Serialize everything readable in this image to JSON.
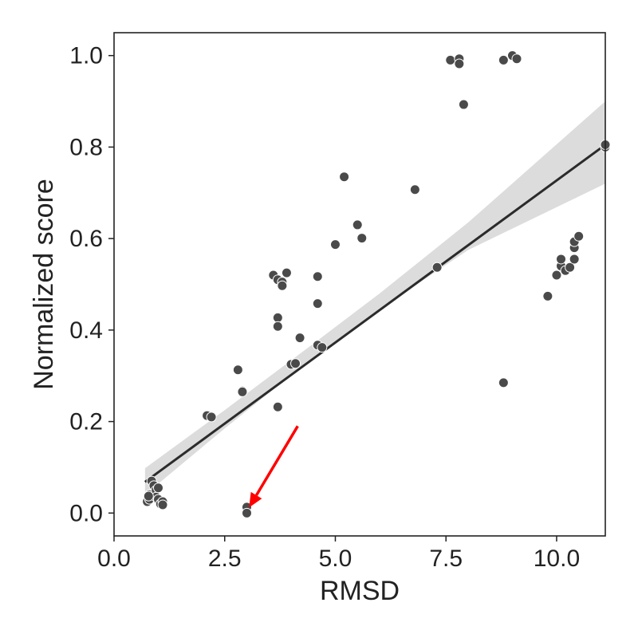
{
  "chart_data": {
    "type": "scatter",
    "title": "",
    "xlabel": "RMSD",
    "ylabel": "Normalized score",
    "xlim": [
      0.0,
      11.1
    ],
    "ylim": [
      -0.05,
      1.05
    ],
    "xticks": [
      0.0,
      2.5,
      5.0,
      7.5,
      10.0
    ],
    "xtick_labels": [
      "0.0",
      "2.5",
      "5.0",
      "7.5",
      "10.0"
    ],
    "yticks": [
      0.0,
      0.2,
      0.4,
      0.6,
      0.8,
      1.0
    ],
    "ytick_labels": [
      "0.0",
      "0.2",
      "0.4",
      "0.6",
      "0.8",
      "1.0"
    ],
    "grid": false,
    "legend": "none",
    "colors": {
      "points": "#4a4a4a",
      "point_edge": "#ffffff",
      "regression_line": "#2b2b2b",
      "confidence_band": "#dcdcdc",
      "arrow": "#ff0000",
      "axes": "#222222"
    },
    "points": [
      {
        "x": 0.75,
        "y": 0.025
      },
      {
        "x": 0.8,
        "y": 0.03
      },
      {
        "x": 0.8,
        "y": 0.04
      },
      {
        "x": 0.85,
        "y": 0.07
      },
      {
        "x": 0.9,
        "y": 0.06
      },
      {
        "x": 0.95,
        "y": 0.05
      },
      {
        "x": 0.95,
        "y": 0.035
      },
      {
        "x": 1.0,
        "y": 0.03
      },
      {
        "x": 1.0,
        "y": 0.055
      },
      {
        "x": 1.05,
        "y": 0.02
      },
      {
        "x": 1.1,
        "y": 0.025
      },
      {
        "x": 1.1,
        "y": 0.018
      },
      {
        "x": 0.78,
        "y": 0.037
      },
      {
        "x": 2.1,
        "y": 0.213
      },
      {
        "x": 2.2,
        "y": 0.21
      },
      {
        "x": 2.8,
        "y": 0.313
      },
      {
        "x": 2.9,
        "y": 0.267
      },
      {
        "x": 2.9,
        "y": 0.265
      },
      {
        "x": 3.0,
        "y": 0.013
      },
      {
        "x": 3.0,
        "y": 0.0
      },
      {
        "x": 3.6,
        "y": 0.52
      },
      {
        "x": 3.7,
        "y": 0.51
      },
      {
        "x": 3.8,
        "y": 0.505
      },
      {
        "x": 3.8,
        "y": 0.497
      },
      {
        "x": 3.9,
        "y": 0.525
      },
      {
        "x": 3.7,
        "y": 0.427
      },
      {
        "x": 3.7,
        "y": 0.408
      },
      {
        "x": 3.7,
        "y": 0.232
      },
      {
        "x": 4.0,
        "y": 0.325
      },
      {
        "x": 4.1,
        "y": 0.327
      },
      {
        "x": 4.2,
        "y": 0.383
      },
      {
        "x": 4.6,
        "y": 0.517
      },
      {
        "x": 4.6,
        "y": 0.458
      },
      {
        "x": 4.6,
        "y": 0.367
      },
      {
        "x": 4.7,
        "y": 0.362
      },
      {
        "x": 5.0,
        "y": 0.587
      },
      {
        "x": 5.2,
        "y": 0.735
      },
      {
        "x": 5.5,
        "y": 0.63
      },
      {
        "x": 5.6,
        "y": 0.601
      },
      {
        "x": 6.8,
        "y": 0.707
      },
      {
        "x": 7.3,
        "y": 0.537
      },
      {
        "x": 7.6,
        "y": 0.99
      },
      {
        "x": 7.8,
        "y": 0.993
      },
      {
        "x": 7.8,
        "y": 0.982
      },
      {
        "x": 7.9,
        "y": 0.893
      },
      {
        "x": 8.8,
        "y": 0.99
      },
      {
        "x": 8.8,
        "y": 0.285
      },
      {
        "x": 9.0,
        "y": 1.0
      },
      {
        "x": 9.1,
        "y": 0.993
      },
      {
        "x": 9.8,
        "y": 0.474
      },
      {
        "x": 10.0,
        "y": 0.52
      },
      {
        "x": 10.1,
        "y": 0.54
      },
      {
        "x": 10.1,
        "y": 0.555
      },
      {
        "x": 10.2,
        "y": 0.53
      },
      {
        "x": 10.3,
        "y": 0.537
      },
      {
        "x": 10.4,
        "y": 0.555
      },
      {
        "x": 10.4,
        "y": 0.58
      },
      {
        "x": 10.4,
        "y": 0.593
      },
      {
        "x": 10.5,
        "y": 0.605
      },
      {
        "x": 11.1,
        "y": 0.8
      },
      {
        "x": 11.1,
        "y": 0.805
      }
    ],
    "regression": {
      "x_start": 0.7,
      "y_start": 0.068,
      "x_end": 11.1,
      "y_end": 0.805
    },
    "confidence_band": [
      {
        "x": 0.7,
        "lower": 0.04,
        "upper": 0.098
      },
      {
        "x": 2.5,
        "lower": 0.185,
        "upper": 0.225
      },
      {
        "x": 4.5,
        "lower": 0.34,
        "upper": 0.37
      },
      {
        "x": 6.0,
        "lower": 0.445,
        "upper": 0.48
      },
      {
        "x": 8.0,
        "lower": 0.575,
        "upper": 0.635
      },
      {
        "x": 11.1,
        "lower": 0.72,
        "upper": 0.9
      }
    ],
    "annotations": [
      {
        "type": "arrow",
        "from": {
          "x": 4.15,
          "y": 0.19
        },
        "to": {
          "x": 3.05,
          "y": 0.012
        }
      }
    ]
  }
}
